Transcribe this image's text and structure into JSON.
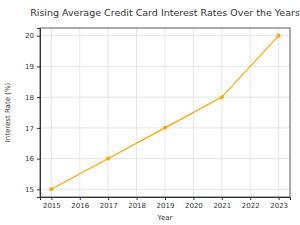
{
  "chart_data": {
    "type": "line",
    "title": "Rising Average Credit Card Interest Rates Over the Years",
    "x_label": "Year",
    "y_label": "Interest Rate (%)",
    "x": [
      2015,
      2017,
      2019,
      2021,
      2023
    ],
    "values": [
      15,
      16,
      17,
      18,
      20
    ],
    "color": "#ffa500",
    "marker": "circle",
    "line_style": "solid",
    "xlim": [
      2014.6,
      2023.4
    ],
    "xticks": [
      2015,
      2016,
      2017,
      2018,
      2019,
      2020,
      2021,
      2022,
      2023
    ],
    "ylim": [
      14.75,
      20.25
    ],
    "yticks": [
      15,
      16,
      17,
      18,
      19,
      20
    ],
    "grid": true
  }
}
